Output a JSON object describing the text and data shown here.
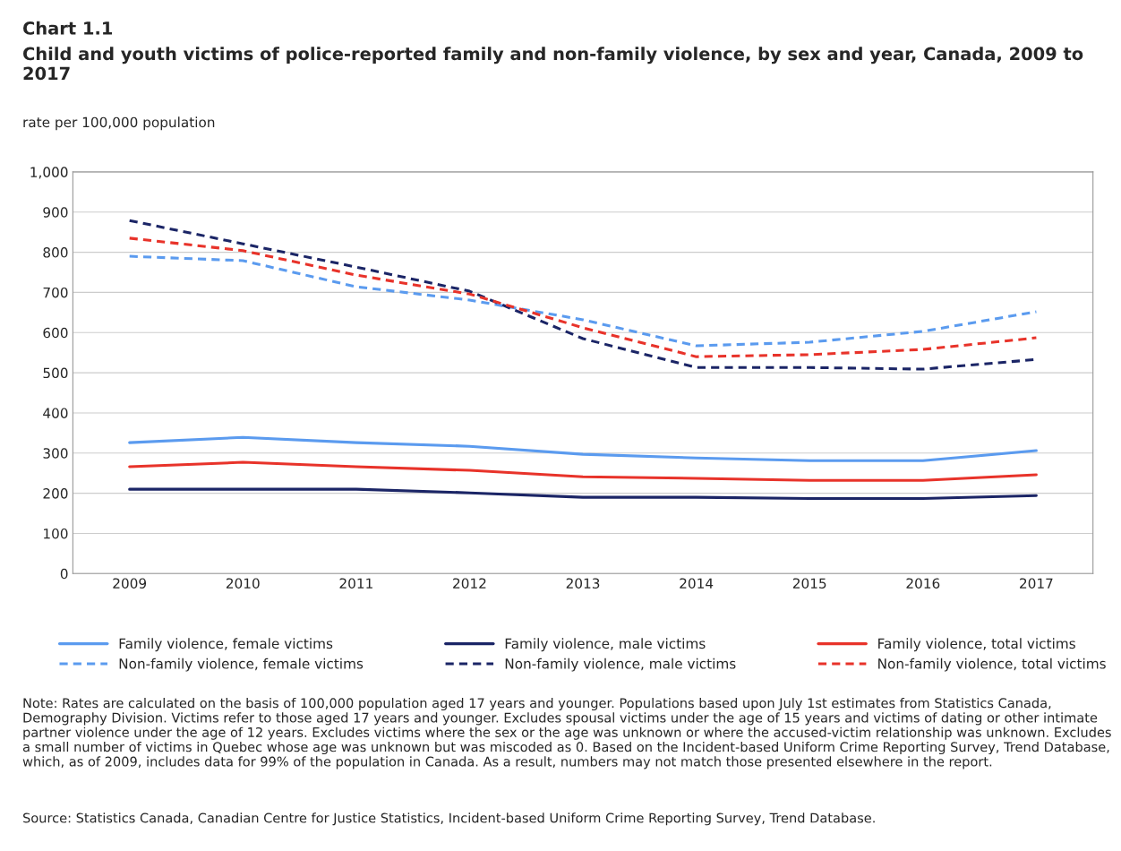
{
  "chart_data": {
    "type": "line",
    "title": "Chart 1.1",
    "subtitle": "Child and youth victims of police-reported family and non-family violence, by sex and year, Canada, 2009 to 2017",
    "ylabel": "rate per 100,000 population",
    "categories": [
      "2009",
      "2010",
      "2011",
      "2012",
      "2013",
      "2014",
      "2015",
      "2016",
      "2017"
    ],
    "series": [
      {
        "name": "Family violence, female victims",
        "color": "#5b9bef",
        "line_style": "solid",
        "values": [
          326,
          339,
          326,
          317,
          297,
          288,
          281,
          281,
          306
        ]
      },
      {
        "name": "Family violence, male victims",
        "color": "#1b2566",
        "line_style": "solid",
        "values": [
          210,
          210,
          210,
          201,
          190,
          190,
          187,
          187,
          194
        ]
      },
      {
        "name": "Family violence, total victims",
        "color": "#e8332a",
        "line_style": "solid",
        "values": [
          266,
          277,
          266,
          257,
          241,
          237,
          232,
          232,
          246
        ]
      },
      {
        "name": "Non-family violence, female victims",
        "color": "#5b9bef",
        "line_style": "dashed",
        "values": [
          790,
          779,
          714,
          681,
          632,
          567,
          576,
          603,
          652
        ]
      },
      {
        "name": "Non-family violence, male victims",
        "color": "#1b2566",
        "line_style": "dashed",
        "values": [
          879,
          821,
          763,
          703,
          585,
          513,
          513,
          509,
          533
        ]
      },
      {
        "name": "Non-family violence, total victims",
        "color": "#e8332a",
        "line_style": "dashed",
        "values": [
          835,
          804,
          743,
          696,
          612,
          540,
          545,
          558,
          587
        ]
      }
    ],
    "ylim": [
      0,
      1000
    ],
    "yticks": [
      0,
      100,
      200,
      300,
      400,
      500,
      600,
      700,
      800,
      900,
      {
        "value": 1000,
        "label": "1,000"
      }
    ],
    "grid": "y",
    "legend": "bottom",
    "marker": "none",
    "annotations": [
      "Note: Rates are calculated on the basis of 100,000 population aged 17 years and younger. Populations based upon July 1st estimates from Statistics Canada, Demography Division. Victims refer to those aged 17 years and younger. Excludes spousal victims under the age of 15 years and victims of dating or other intimate partner violence under the age of 12 years. Excludes victims where the sex or the age was unknown or where the accused-victim relationship was unknown. Excludes a small number of victims in Quebec whose age was unknown but was miscoded as 0. Based on the Incident-based Uniform Crime Reporting Survey, Trend Database, which, as of 2009, includes data for 99% of the population in Canada. As a result, numbers may not match those presented elsewhere in the report.",
      "Source: Statistics Canada, Canadian Centre for Justice Statistics, Incident-based Uniform Crime Reporting Survey, Trend Database."
    ]
  }
}
